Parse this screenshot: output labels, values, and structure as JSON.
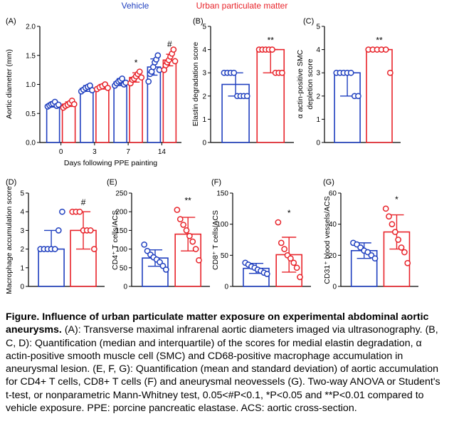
{
  "legend": {
    "vehicle": "Vehicle",
    "upm": "Urban particulate matter",
    "vehicle_color": "#1f3fbf",
    "upm_color": "#e8232a"
  },
  "charts": [
    {
      "panel": "(A)",
      "type": "bar",
      "ylabel": "Aortic diameter (mm)",
      "xlabel": "Days following PPE painting",
      "ylim": [
        0,
        2.0
      ],
      "yticks": [
        "0.0",
        "0.5",
        "1.0",
        "1.5",
        "2.0"
      ],
      "categories": [
        "0",
        "3",
        "7",
        "14"
      ],
      "series": [
        {
          "name": "Vehicle",
          "values": [
            0.65,
            0.93,
            1.04,
            1.3
          ],
          "err": [
            0.04,
            0.05,
            0.06,
            0.14
          ],
          "points": [
            [
              0.62,
              0.64,
              0.66,
              0.67,
              0.7,
              0.63,
              0.65
            ],
            [
              0.88,
              0.91,
              0.94,
              0.96,
              0.98,
              0.9
            ],
            [
              0.98,
              1.02,
              1.05,
              1.07,
              1.1,
              1.0,
              1.03
            ],
            [
              1.05,
              1.18,
              1.22,
              1.3,
              1.38,
              1.43,
              1.5,
              1.25
            ]
          ]
        },
        {
          "name": "Urban particulate matter",
          "values": [
            0.66,
            0.96,
            1.12,
            1.42
          ],
          "err": [
            0.04,
            0.04,
            0.08,
            0.1
          ],
          "points": [
            [
              0.6,
              0.63,
              0.65,
              0.68,
              0.72,
              0.66
            ],
            [
              0.92,
              0.95,
              0.97,
              1.0,
              0.94
            ],
            [
              1.02,
              1.08,
              1.1,
              1.14,
              1.18,
              1.22,
              1.12
            ],
            [
              1.25,
              1.33,
              1.38,
              1.42,
              1.48,
              1.53,
              1.6,
              1.4
            ]
          ]
        }
      ],
      "annotations": [
        "",
        "",
        "*",
        "#"
      ]
    },
    {
      "panel": "(B)",
      "type": "bar",
      "ylabel": "Elastin degradation score",
      "ylim": [
        0,
        5
      ],
      "yticks": [
        "0",
        "1",
        "2",
        "3",
        "4",
        "5"
      ],
      "categories": [
        "Vehicle",
        "Urban particulate matter"
      ],
      "series": [
        {
          "name": "Vehicle",
          "values": [
            2.5
          ],
          "err_low": [
            2
          ],
          "err_high": [
            3
          ],
          "points": [
            3,
            3,
            3,
            3,
            2,
            2,
            2,
            2
          ]
        },
        {
          "name": "Urban particulate matter",
          "values": [
            4
          ],
          "err_low": [
            3
          ],
          "err_high": [
            4
          ],
          "points": [
            4,
            4,
            4,
            4,
            4,
            3,
            3,
            3
          ]
        }
      ],
      "annotations": [
        "",
        "**"
      ]
    },
    {
      "panel": "(C)",
      "type": "bar",
      "ylabel": "α actin-positive SMC depletion score",
      "ylim": [
        0,
        5
      ],
      "yticks": [
        "0",
        "1",
        "2",
        "3",
        "4",
        "5"
      ],
      "categories": [
        "Vehicle",
        "Urban particulate matter"
      ],
      "series": [
        {
          "name": "Vehicle",
          "values": [
            3
          ],
          "err_low": [
            2
          ],
          "err_high": [
            3
          ],
          "points": [
            3,
            3,
            3,
            3,
            3,
            2,
            2
          ]
        },
        {
          "name": "Urban particulate matter",
          "values": [
            4
          ],
          "err_low": [
            4
          ],
          "err_high": [
            4
          ],
          "points": [
            4,
            4,
            4,
            4,
            4,
            3
          ]
        }
      ],
      "annotations": [
        "",
        "**"
      ]
    },
    {
      "panel": "(D)",
      "type": "bar",
      "ylabel": "Macrophage accumulation score",
      "ylim": [
        0,
        5
      ],
      "yticks": [
        "0",
        "1",
        "2",
        "3",
        "4",
        "5"
      ],
      "categories": [
        "Vehicle",
        "Urban particulate matter"
      ],
      "series": [
        {
          "name": "Vehicle",
          "values": [
            2
          ],
          "err_low": [
            2
          ],
          "err_high": [
            3
          ],
          "points": [
            2,
            2,
            2,
            2,
            2,
            3,
            4
          ]
        },
        {
          "name": "Urban particulate matter",
          "values": [
            3
          ],
          "err_low": [
            2
          ],
          "err_high": [
            4
          ],
          "points": [
            4,
            4,
            4,
            3,
            3,
            3,
            2
          ]
        }
      ],
      "annotations": [
        "",
        "#"
      ]
    },
    {
      "panel": "(E)",
      "type": "bar",
      "ylabel": "CD4⁺ T cells/ACS",
      "ylim": [
        0,
        250
      ],
      "yticks": [
        "0",
        "50",
        "100",
        "150",
        "200",
        "250"
      ],
      "categories": [
        "Vehicle",
        "Urban particulate matter"
      ],
      "series": [
        {
          "name": "Vehicle",
          "values": [
            76
          ],
          "err": [
            22
          ],
          "points": [
            112,
            95,
            85,
            78,
            72,
            65,
            55,
            45
          ]
        },
        {
          "name": "Urban particulate matter",
          "values": [
            140
          ],
          "err": [
            45
          ],
          "points": [
            205,
            180,
            165,
            150,
            135,
            120,
            100,
            70
          ]
        }
      ],
      "annotations": [
        "",
        "**"
      ]
    },
    {
      "panel": "(F)",
      "type": "bar",
      "ylabel": "CD8⁺ T cells/ACS",
      "ylim": [
        0,
        150
      ],
      "yticks": [
        "0",
        "50",
        "100",
        "150"
      ],
      "categories": [
        "Vehicle",
        "Urban particulate matter"
      ],
      "series": [
        {
          "name": "Vehicle",
          "values": [
            29
          ],
          "err": [
            8
          ],
          "points": [
            38,
            35,
            32,
            30,
            27,
            25,
            22,
            20
          ]
        },
        {
          "name": "Urban particulate matter",
          "values": [
            51
          ],
          "err": [
            28
          ],
          "points": [
            103,
            70,
            60,
            50,
            45,
            38,
            30,
            15
          ]
        }
      ],
      "annotations": [
        "",
        "*"
      ]
    },
    {
      "panel": "(G)",
      "type": "bar",
      "ylabel": "CD31⁺ blood vessels/ACS",
      "ylim": [
        0,
        60
      ],
      "yticks": [
        "0",
        "20",
        "40",
        "60"
      ],
      "categories": [
        "Vehicle",
        "Urban particulate matter"
      ],
      "series": [
        {
          "name": "Vehicle",
          "values": [
            23
          ],
          "err": [
            5
          ],
          "points": [
            28,
            27,
            25,
            23,
            22,
            20,
            18
          ]
        },
        {
          "name": "Urban particulate matter",
          "values": [
            35
          ],
          "err": [
            11
          ],
          "points": [
            50,
            45,
            40,
            35,
            30,
            25,
            22,
            15
          ]
        }
      ],
      "annotations": [
        "",
        "*"
      ]
    }
  ],
  "caption": {
    "title": "Figure. Influence of urban particulate matter exposure on experimental abdominal aortic aneurysms.",
    "body": " (A): Transverse maximal infrarenal aortic diameters imaged via ultrasonography. (B, C, D): Quantification (median and interquartile) of the scores for medial elastin degradation, α actin-positive smooth muscle cell (SMC) and CD68-positive macrophage accumulation in aneurysmal lesion. (E, F, G): Quantification (mean and standard deviation) of aortic accumulation for CD4+ T cells, CD8+ T cells (F) and aneurysmal neovessels (G). Two-way ANOVA or Student's t-test, or nonparametric Mann-Whitney test, 0.05<#P<0.1, *P<0.05 and **P<0.01 compared to vehicle exposure. PPE: porcine pancreatic elastase. ACS: aortic cross-section."
  }
}
